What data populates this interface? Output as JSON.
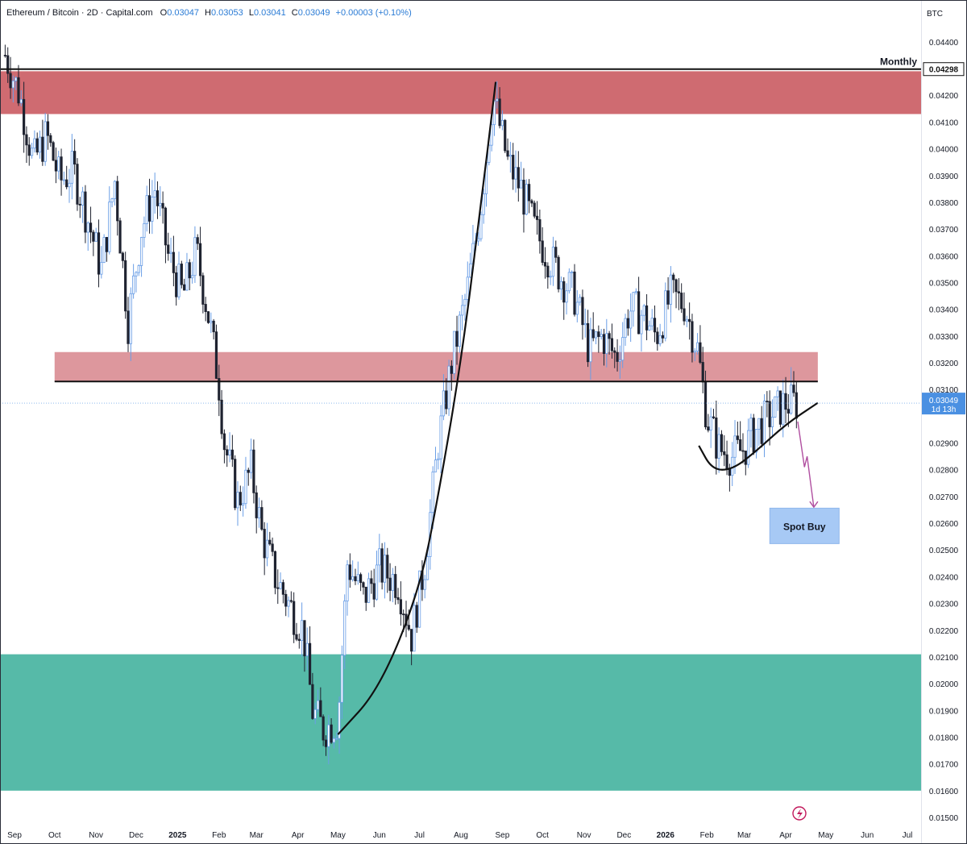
{
  "header": {
    "symbol": "Ethereum / Bitcoin · 2D · Capital.com",
    "o_label": "O",
    "o_value": "0.03047",
    "h_label": "H",
    "h_value": "0.03053",
    "l_label": "L",
    "l_value": "0.03041",
    "c_label": "C",
    "c_value": "0.03049",
    "change": "+0.00003 (+0.10%)"
  },
  "currency": "BTC",
  "chart_data": {
    "type": "candlestick",
    "ylim": [
      0.01494,
      0.04472
    ],
    "y_ticks": [
      "0.04400",
      "0.04200",
      "0.04100",
      "0.04000",
      "0.03900",
      "0.03800",
      "0.03700",
      "0.03600",
      "0.03500",
      "0.03400",
      "0.03300",
      "0.03200",
      "0.03100",
      "0.02900",
      "0.02800",
      "0.02700",
      "0.02600",
      "0.02500",
      "0.02400",
      "0.02300",
      "0.02200",
      "0.02100",
      "0.02000",
      "0.01900",
      "0.01800",
      "0.01700",
      "0.01600",
      "0.01500"
    ],
    "y_tick_values": [
      0.044,
      0.042,
      0.041,
      0.04,
      0.039,
      0.038,
      0.037,
      0.036,
      0.035,
      0.034,
      0.033,
      0.032,
      0.031,
      0.029,
      0.028,
      0.027,
      0.026,
      0.025,
      0.024,
      0.023,
      0.022,
      0.021,
      0.02,
      0.019,
      0.018,
      0.017,
      0.016,
      0.015
    ],
    "x_ticks": [
      "Sep",
      "Oct",
      "Nov",
      "Dec",
      "2025",
      "Feb",
      "Mar",
      "Apr",
      "May",
      "Jun",
      "Jul",
      "Aug",
      "Sep",
      "Oct",
      "Nov",
      "Dec",
      "2026",
      "Feb",
      "Mar",
      "Apr",
      "May",
      "Jun",
      "Jul"
    ],
    "x_tick_dates": [
      "2024-09-01",
      "2024-10-01",
      "2024-11-01",
      "2024-12-01",
      "2025-01-01",
      "2025-02-01",
      "2025-03-01",
      "2025-04-01",
      "2025-05-01",
      "2025-06-01",
      "2025-07-01",
      "2025-08-01",
      "2025-09-01",
      "2025-10-01",
      "2025-11-01",
      "2025-12-01",
      "2026-01-01",
      "2026-02-01",
      "2026-03-01",
      "2026-04-01",
      "2026-05-01",
      "2026-06-01",
      "2026-07-01"
    ],
    "bold_x_ticks": [
      "2025",
      "2026"
    ],
    "price_path": [
      [
        "2024-08-25",
        0.0435
      ],
      [
        "2024-09-05",
        0.042
      ],
      [
        "2024-09-15",
        0.0395
      ],
      [
        "2024-09-25",
        0.0405
      ],
      [
        "2024-10-05",
        0.0388
      ],
      [
        "2024-10-15",
        0.0392
      ],
      [
        "2024-10-25",
        0.0375
      ],
      [
        "2024-11-05",
        0.0355
      ],
      [
        "2024-11-15",
        0.0388
      ],
      [
        "2024-11-25",
        0.0335
      ],
      [
        "2024-12-05",
        0.037
      ],
      [
        "2024-12-15",
        0.0385
      ],
      [
        "2024-12-25",
        0.036
      ],
      [
        "2025-01-05",
        0.0345
      ],
      [
        "2025-01-15",
        0.0362
      ],
      [
        "2025-01-25",
        0.0335
      ],
      [
        "2025-02-01",
        0.0312
      ],
      [
        "2025-02-05",
        0.029
      ],
      [
        "2025-02-15",
        0.0268
      ],
      [
        "2025-02-25",
        0.028
      ],
      [
        "2025-03-05",
        0.0256
      ],
      [
        "2025-03-15",
        0.024
      ],
      [
        "2025-03-25",
        0.023
      ],
      [
        "2025-04-05",
        0.022
      ],
      [
        "2025-04-12",
        0.019
      ],
      [
        "2025-04-20",
        0.0183
      ],
      [
        "2025-05-01",
        0.0186
      ],
      [
        "2025-05-08",
        0.0245
      ],
      [
        "2025-05-20",
        0.0232
      ],
      [
        "2025-06-01",
        0.0243
      ],
      [
        "2025-06-15",
        0.0238
      ],
      [
        "2025-06-25",
        0.0218
      ],
      [
        "2025-07-05",
        0.0245
      ],
      [
        "2025-07-15",
        0.029
      ],
      [
        "2025-07-25",
        0.032
      ],
      [
        "2025-08-05",
        0.0345
      ],
      [
        "2025-08-15",
        0.0375
      ],
      [
        "2025-08-25",
        0.042
      ],
      [
        "2025-09-05",
        0.0395
      ],
      [
        "2025-09-15",
        0.0385
      ],
      [
        "2025-09-25",
        0.037
      ],
      [
        "2025-10-05",
        0.036
      ],
      [
        "2025-10-15",
        0.0352
      ],
      [
        "2025-10-25",
        0.0345
      ],
      [
        "2025-11-05",
        0.0325
      ],
      [
        "2025-11-15",
        0.033
      ],
      [
        "2025-11-25",
        0.0322
      ],
      [
        "2025-12-05",
        0.034
      ],
      [
        "2025-12-15",
        0.0338
      ],
      [
        "2025-12-25",
        0.033
      ],
      [
        "2026-01-05",
        0.0345
      ],
      [
        "2026-01-15",
        0.0342
      ],
      [
        "2026-01-25",
        0.0325
      ],
      [
        "2026-02-01",
        0.03
      ],
      [
        "2026-02-10",
        0.0288
      ],
      [
        "2026-02-20",
        0.0285
      ],
      [
        "2026-03-01",
        0.0288
      ],
      [
        "2026-03-10",
        0.0295
      ],
      [
        "2026-03-20",
        0.03
      ],
      [
        "2026-04-01",
        0.0305
      ],
      [
        "2026-04-10",
        0.03049
      ]
    ],
    "zones": [
      {
        "name": "upper-resistance",
        "from": 0.0413,
        "to": 0.0429,
        "start": "2024-08-20",
        "end": "2026-07-15",
        "color": "#c8565d",
        "opacity": 0.88
      },
      {
        "name": "middle-resistance",
        "from": 0.0313,
        "to": 0.0324,
        "start": "2024-10-01",
        "end": "2026-04-25",
        "color": "#d47a82",
        "opacity": 0.78
      },
      {
        "name": "support",
        "from": 0.016,
        "to": 0.0211,
        "start": "2024-08-20",
        "end": "2026-07-15",
        "color": "#3fb09c",
        "opacity": 0.88
      }
    ],
    "levels": [
      {
        "value": 0.04298,
        "start": "2024-08-20",
        "end": "2026-07-15",
        "label": "Monthly",
        "tag": "0.04298"
      },
      {
        "value": 0.0313,
        "start": "2024-10-01",
        "end": "2026-04-25"
      }
    ],
    "last_price": {
      "value": 0.03049,
      "label": "0.03049",
      "countdown": "1d 13h",
      "color": "#4a90e2"
    },
    "annotations": [
      {
        "text": "Spot Buy",
        "date": "2026-04-15",
        "value": 0.0259,
        "color": "#a7c9f5"
      }
    ],
    "curves": [
      {
        "name": "parabolic-curve",
        "points": [
          [
            "2025-05-01",
            0.0181
          ],
          [
            "2025-06-01",
            0.0198
          ],
          [
            "2025-07-01",
            0.0235
          ],
          [
            "2025-07-15",
            0.027
          ],
          [
            "2025-08-01",
            0.032
          ],
          [
            "2025-08-15",
            0.0375
          ],
          [
            "2025-08-27",
            0.0425
          ]
        ]
      },
      {
        "name": "rounding-bottom-curve",
        "points": [
          [
            "2026-01-26",
            0.0289
          ],
          [
            "2026-02-05",
            0.028
          ],
          [
            "2026-02-20",
            0.028
          ],
          [
            "2026-03-10",
            0.0287
          ],
          [
            "2026-04-01",
            0.0297
          ],
          [
            "2026-04-25",
            0.0305
          ]
        ]
      }
    ],
    "arrow": {
      "points": [
        [
          "2026-04-10",
          0.0298
        ],
        [
          "2026-04-15",
          0.0281
        ],
        [
          "2026-04-17",
          0.0285
        ],
        [
          "2026-04-22",
          0.0266
        ]
      ],
      "color": "#b04fa0"
    }
  }
}
